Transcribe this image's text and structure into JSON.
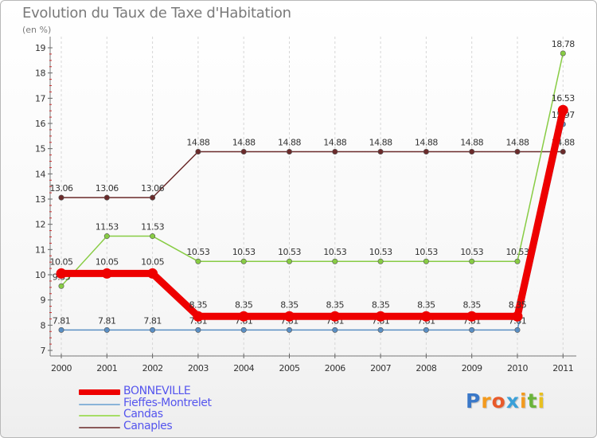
{
  "chart_data": {
    "type": "line",
    "title": "Evolution du Taux de Taxe d'Habitation",
    "subtitle": "(en %)",
    "categories": [
      "2000",
      "2001",
      "2002",
      "2003",
      "2004",
      "2005",
      "2006",
      "2007",
      "2008",
      "2009",
      "2010",
      "2011"
    ],
    "ylim": [
      7,
      19
    ],
    "yticks": [
      "7",
      "8",
      "9",
      "10",
      "11",
      "12",
      "13",
      "14",
      "15",
      "16",
      "17",
      "18",
      "19"
    ],
    "series": [
      {
        "name": "Canaples",
        "color": "#6b2b2b",
        "values": [
          13.06,
          13.06,
          13.06,
          14.88,
          14.88,
          14.88,
          14.88,
          14.88,
          14.88,
          14.88,
          14.88,
          14.88
        ],
        "labels": [
          "13.06",
          "13.06",
          "13.06",
          "14.88",
          "14.88",
          "14.88",
          "14.88",
          "14.88",
          "14.88",
          "14.88",
          "14.88",
          "14.88"
        ]
      },
      {
        "name": "Candas",
        "color": "#88cc44",
        "values": [
          9.55,
          11.53,
          11.53,
          10.53,
          10.53,
          10.53,
          10.53,
          10.53,
          10.53,
          10.53,
          10.53,
          18.78
        ],
        "labels": [
          "9.55",
          "11.53",
          "11.53",
          "10.53",
          "10.53",
          "10.53",
          "10.53",
          "10.53",
          "10.53",
          "10.53",
          "10.53",
          "18.78"
        ]
      },
      {
        "name": "Fieffes-Montrelet",
        "color": "#5a8fc4",
        "values": [
          7.81,
          7.81,
          7.81,
          7.81,
          7.81,
          7.81,
          7.81,
          7.81,
          7.81,
          7.81,
          7.81,
          15.97
        ],
        "labels": [
          "7.81",
          "7.81",
          "7.81",
          "7.81",
          "7.81",
          "7.81",
          "7.81",
          "7.81",
          "7.81",
          "7.81",
          "7.81",
          "15.97"
        ]
      },
      {
        "name": "BONNEVILLE",
        "color": "#ee0000",
        "values": [
          10.05,
          10.05,
          10.05,
          8.35,
          8.35,
          8.35,
          8.35,
          8.35,
          8.35,
          8.35,
          8.35,
          16.53
        ],
        "labels": [
          "10.05",
          "10.05",
          "10.05",
          "8.35",
          "8.35",
          "8.35",
          "8.35",
          "8.35",
          "8.35",
          "8.35",
          "8.35",
          "16.53"
        ]
      }
    ]
  },
  "legend": [
    {
      "label": "BONNEVILLE",
      "color": "#ee0000",
      "text_color": "#5555ee"
    },
    {
      "label": "Fieffes-Montrelet",
      "color": "#8ab4d8",
      "text_color": "#5555ee"
    },
    {
      "label": "Candas",
      "color": "#a6dd66",
      "text_color": "#5555ee"
    },
    {
      "label": "Canaples",
      "color": "#8a5a5a",
      "text_color": "#5555ee"
    }
  ],
  "logo": {
    "letters": [
      "P",
      "r",
      "o",
      "x",
      "i",
      "t",
      "i"
    ],
    "colors": [
      "#3a78c8",
      "#f39a1e",
      "#e85a2a",
      "#3aa0d8",
      "#f39a1e",
      "#6ab43a",
      "#e8c020"
    ]
  }
}
